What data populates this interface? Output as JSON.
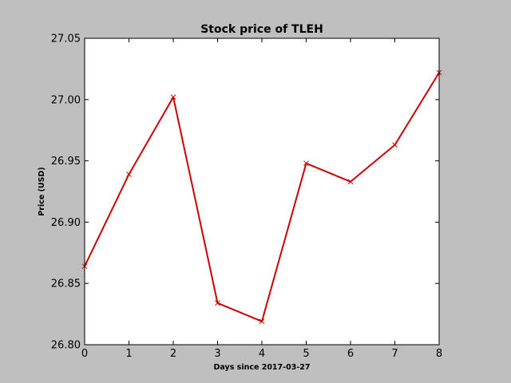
{
  "chart_data": {
    "type": "line",
    "title": "Stock price of TLEH",
    "xlabel": "Days since 2017-03-27",
    "ylabel": "Price (USD)",
    "x": [
      0,
      1,
      2,
      3,
      4,
      5,
      6,
      7,
      8
    ],
    "series": [
      {
        "values": [
          26.864,
          26.939,
          27.002,
          26.834,
          26.819,
          26.948,
          26.933,
          26.963,
          27.022
        ],
        "color": "#cc0000",
        "marker": "x"
      }
    ],
    "xlim": [
      0,
      8
    ],
    "ylim": [
      26.8,
      27.05
    ],
    "xticks": [
      "0",
      "1",
      "2",
      "3",
      "4",
      "5",
      "6",
      "7",
      "8"
    ],
    "yticks": [
      "26.80",
      "26.85",
      "26.90",
      "26.95",
      "27.00",
      "27.05"
    ],
    "grid": false,
    "legend": "none"
  }
}
